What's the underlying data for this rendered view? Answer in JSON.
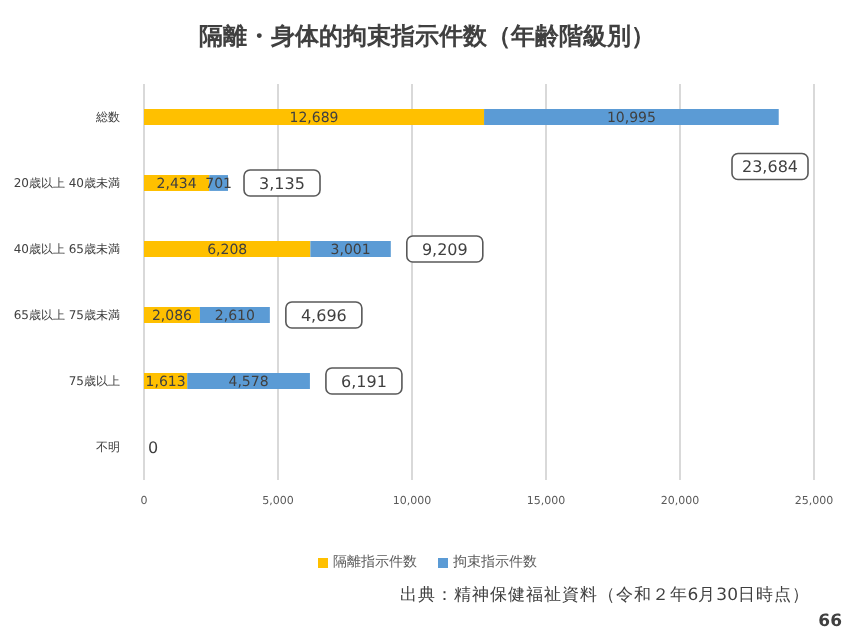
{
  "chart_data": {
    "type": "bar",
    "orientation": "horizontal",
    "stacked": true,
    "title": "隔離・身体的拘束指示件数（年齢階級別）",
    "categories": [
      "総数",
      "20歳以上 40歳未満",
      "40歳以上 65歳未満",
      "65歳以上 75歳未満",
      "75歳以上",
      "不明"
    ],
    "series": [
      {
        "name": "隔離指示件数",
        "color": "#ffc000",
        "values": [
          12689,
          2434,
          6208,
          2086,
          1613,
          0
        ],
        "value_labels": [
          "12,689",
          "2,434",
          "6,208",
          "2,086",
          "1,613",
          null
        ]
      },
      {
        "name": "拘束指示件数",
        "color": "#5b9bd5",
        "values": [
          10995,
          701,
          3001,
          2610,
          4578,
          0
        ],
        "value_labels": [
          "10,995",
          "701",
          "3,001",
          "2,610",
          "4,578",
          null
        ]
      }
    ],
    "totals": [
      "23,684",
      "3,135",
      "9,209",
      "4,696",
      "6,191",
      "0"
    ],
    "xlim": [
      0,
      25000
    ],
    "xticks": [
      0,
      {
        "value": 5000,
        "label": "5,000"
      },
      {
        "value": 10000,
        "label": "10,000"
      },
      {
        "value": 15000,
        "label": "15,000"
      },
      {
        "value": 20000,
        "label": "20,000"
      },
      {
        "value": 25000,
        "label": "25,000"
      }
    ],
    "grid": "x",
    "legend": "bottom",
    "annotations": [
      "出典：精神保健福祉資料（令和２年6月30日時点）",
      "66"
    ]
  }
}
